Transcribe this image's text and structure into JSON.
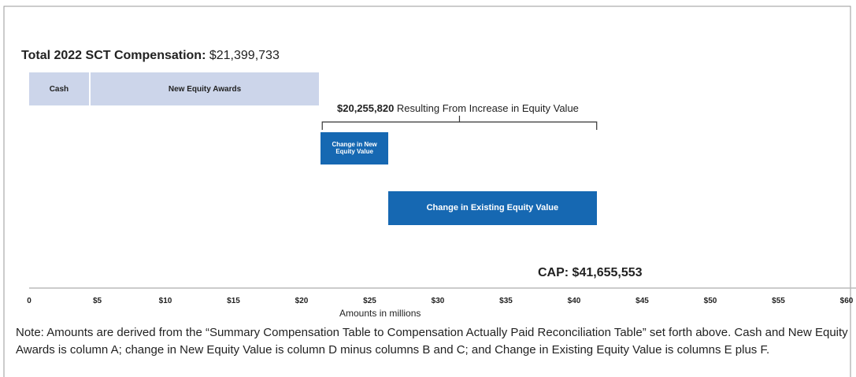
{
  "chart_data": {
    "type": "floating-bar",
    "title": "Total 2022 SCT Compensation:",
    "title_value": "$21,399,733",
    "bracket_value": "$20,255,820",
    "bracket_text": "Resulting From Increase in Equity Value",
    "cap_label": "CAP: $41,655,553",
    "x_label": "Amounts in millions",
    "categories": [
      "Cash",
      "New Equity Awards",
      "Change in New Equity Value",
      "Change in Existing Equity Value"
    ],
    "values": [
      4.5,
      16.9,
      4.96,
      15.3
    ],
    "colors": [
      "#ccd5ea",
      "#ccd5ea",
      "#1668b2",
      "#1668b2"
    ],
    "xlim": [
      0,
      60
    ],
    "xticks": [
      0,
      {
        "value": 5,
        "label": "$5"
      },
      {
        "value": 10,
        "label": "$10"
      },
      {
        "value": 15,
        "label": "$15"
      },
      {
        "value": 20,
        "label": "$20"
      },
      {
        "value": 25,
        "label": "$25"
      },
      {
        "value": 30,
        "label": "$30"
      },
      {
        "value": 35,
        "label": "$35"
      },
      {
        "value": 40,
        "label": "$40"
      },
      {
        "value": 45,
        "label": "$45"
      },
      {
        "value": 50,
        "label": "$50"
      },
      {
        "value": 55,
        "label": "$55"
      },
      {
        "value": 60,
        "label": "$60"
      }
    ],
    "note": "Note: Amounts are derived from the “Summary Compensation Table to Compensation Actually Paid Reconciliation Table” set forth above. Cash and New Equity Awards is column A; change in New Equity Value is column D minus columns B and C; and Change in Existing Equity Value is columns E plus F."
  }
}
